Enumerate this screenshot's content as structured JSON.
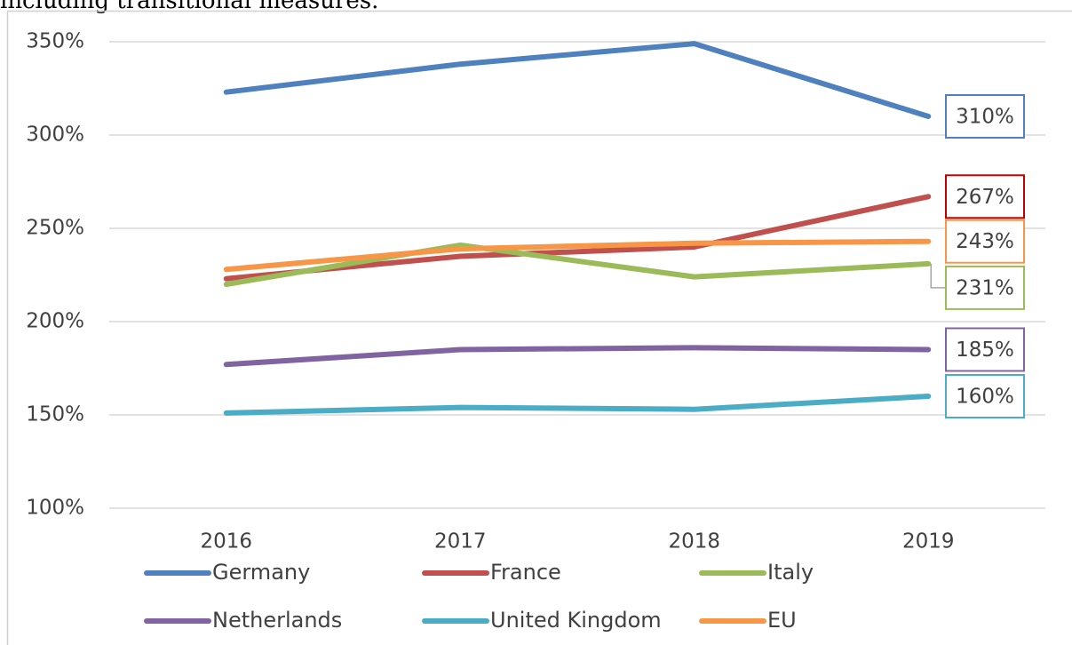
{
  "chart_data": {
    "type": "line",
    "subtitle": "including transitional measures.",
    "categories": [
      "2016",
      "2017",
      "2018",
      "2019"
    ],
    "ylim": [
      100,
      350
    ],
    "yticks": [
      {
        "value": 100,
        "label": "100%"
      },
      {
        "value": 150,
        "label": "150%"
      },
      {
        "value": 200,
        "label": "200%"
      },
      {
        "value": 250,
        "label": "250%"
      },
      {
        "value": 300,
        "label": "300%"
      },
      {
        "value": 350,
        "label": "350%"
      }
    ],
    "grid": true,
    "legend": "bottom",
    "series": [
      {
        "name": "Germany",
        "color": "#4e81bd",
        "values": [
          323,
          338,
          349,
          310
        ],
        "value_labels": [
          null,
          null,
          null,
          "310%"
        ]
      },
      {
        "name": "France",
        "color": "#c0504d",
        "values": [
          223,
          235,
          240,
          267
        ],
        "value_labels": [
          null,
          null,
          null,
          "267%"
        ]
      },
      {
        "name": "Italy",
        "color": "#9bbb59",
        "values": [
          220,
          241,
          224,
          231
        ],
        "value_labels": [
          null,
          null,
          null,
          "231%"
        ]
      },
      {
        "name": "Netherlands",
        "color": "#8064a2",
        "values": [
          177,
          185,
          186,
          185
        ],
        "value_labels": [
          null,
          null,
          null,
          "185%"
        ]
      },
      {
        "name": "United Kingdom",
        "color": "#4bacc6",
        "values": [
          151,
          154,
          153,
          160
        ],
        "value_labels": [
          null,
          null,
          null,
          "160%"
        ]
      },
      {
        "name": "EU",
        "color": "#f79646",
        "values": [
          228,
          239,
          242,
          243
        ],
        "value_labels": [
          null,
          null,
          null,
          "243%"
        ]
      }
    ]
  }
}
